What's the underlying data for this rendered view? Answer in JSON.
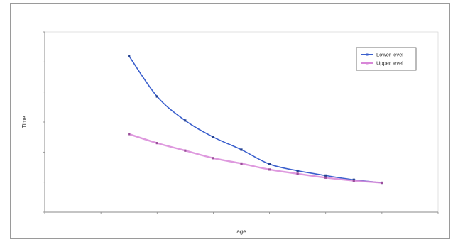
{
  "chart_data": {
    "type": "line",
    "title": "",
    "xlabel": "age",
    "ylabel": "Time",
    "xlim": [
      8,
      22
    ],
    "ylim": [
      0,
      6
    ],
    "x_ticks": [
      8,
      10,
      12,
      14,
      16,
      18,
      20,
      22
    ],
    "y_ticks": [
      0,
      1,
      2,
      3,
      4,
      5,
      6
    ],
    "grid": false,
    "legend_position": "top-right",
    "series": [
      {
        "name": "Lower level",
        "color": "#3a5fcd",
        "x": [
          11,
          12,
          13,
          14,
          15,
          16,
          17,
          18,
          19,
          20
        ],
        "y": [
          5.2,
          3.85,
          3.05,
          2.5,
          2.08,
          1.6,
          1.38,
          1.22,
          1.08,
          0.98
        ]
      },
      {
        "name": "Upper level",
        "color": "#d887d8",
        "x": [
          11,
          12,
          13,
          14,
          15,
          16,
          17,
          18,
          19,
          20
        ],
        "y": [
          2.6,
          2.3,
          2.05,
          1.8,
          1.62,
          1.42,
          1.28,
          1.15,
          1.05,
          0.98
        ]
      }
    ]
  }
}
